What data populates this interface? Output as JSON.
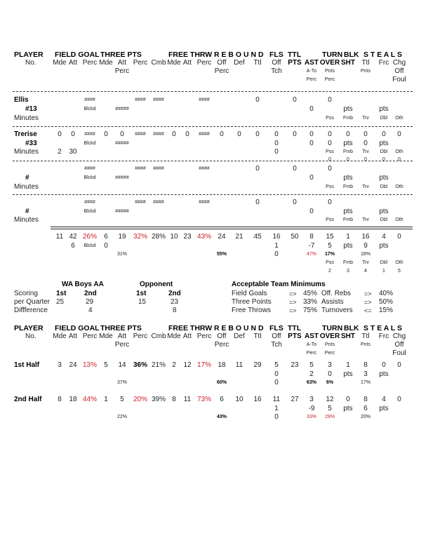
{
  "header": {
    "groups": [
      "PLAYER",
      "FIELD GOAL",
      "THREE PTS",
      "FREE THRW",
      "R E B O U N D",
      "FLS",
      "TTL",
      "TURN",
      "BLK",
      "S T E A L S"
    ],
    "rows": [
      [
        {
          "c": 0,
          "t": "No."
        },
        {
          "c": 1,
          "t": "Mde"
        },
        {
          "c": 2,
          "t": "Att"
        },
        {
          "c": 3,
          "t": "Perc"
        },
        {
          "c": 4,
          "t": "Mde"
        },
        {
          "c": 5,
          "t": "Att"
        },
        {
          "c": 6,
          "t": "Perc"
        },
        {
          "c": 7,
          "t": "Cmb"
        },
        {
          "c": 8,
          "t": "Mde"
        },
        {
          "c": 9,
          "t": "Att"
        },
        {
          "c": 10,
          "t": "Perc"
        },
        {
          "c": 11,
          "t": "Off"
        },
        {
          "c": 12,
          "t": "Def"
        },
        {
          "c": 13,
          "t": "Ttl"
        },
        {
          "c": 14,
          "t": "Off"
        },
        {
          "c": 15,
          "t": "PTS",
          "s": "b"
        },
        {
          "c": 16,
          "t": "AST",
          "s": "b"
        },
        {
          "c": 17,
          "t": "OVER",
          "s": "b"
        },
        {
          "c": 18,
          "t": "SHT",
          "s": "b"
        },
        {
          "c": 19,
          "t": "Ttl"
        },
        {
          "c": 20,
          "t": "Frc"
        },
        {
          "c": 21,
          "t": "Chg"
        }
      ],
      [
        {
          "c": 5,
          "t": "Perc"
        },
        {
          "c": 11,
          "t": "Perc"
        },
        {
          "c": 14,
          "t": "Tch"
        },
        {
          "c": 16,
          "t": "A-To",
          "s": "sm"
        },
        {
          "c": 17,
          "t": "Pnts",
          "s": "sm"
        },
        {
          "c": 19,
          "t": "Pnts",
          "s": "sm"
        },
        {
          "c": 21,
          "t": "Off"
        }
      ],
      [
        {
          "c": 16,
          "t": "Perc",
          "s": "sm"
        },
        {
          "c": 17,
          "t": "Perc",
          "s": "sm"
        },
        {
          "c": 21,
          "t": "Foul"
        }
      ]
    ]
  },
  "players": [
    {
      "name": "Ellis",
      "rows": [
        [
          {
            "c": 3,
            "t": "####",
            "s": "sm"
          },
          {
            "c": 6,
            "t": "####",
            "s": "sm"
          },
          {
            "c": 7,
            "t": "####",
            "s": "sm"
          },
          {
            "c": 10,
            "t": "####",
            "s": "sm"
          },
          {
            "c": 13,
            "t": "0"
          },
          {
            "c": 15,
            "t": "0"
          },
          {
            "c": 17,
            "t": "0"
          }
        ],
        [
          {
            "c": 0,
            "t": "#13",
            "s": "b"
          },
          {
            "c": 3,
            "t": "Blckd",
            "s": "sm"
          },
          {
            "c": 5,
            "t": "#####",
            "s": "sm"
          },
          {
            "c": 16,
            "t": "0"
          },
          {
            "c": 18,
            "t": "pts"
          },
          {
            "c": 20,
            "t": "pts"
          }
        ],
        [
          {
            "c": 0,
            "t": "Minutes"
          },
          {
            "c": 17,
            "t": "Pss",
            "s": "sm"
          },
          {
            "c": 18,
            "t": "Fmb",
            "s": "sm"
          },
          {
            "c": 19,
            "t": "Trv",
            "s": "sm"
          },
          {
            "c": 20,
            "t": "Dbl",
            "s": "sm"
          },
          {
            "c": 21,
            "t": "Oth",
            "s": "sm"
          }
        ]
      ]
    },
    {
      "name": "Trerise",
      "rows": [
        [
          {
            "c": 1,
            "t": "0"
          },
          {
            "c": 2,
            "t": "0"
          },
          {
            "c": 3,
            "t": "####",
            "s": "sm"
          },
          {
            "c": 4,
            "t": "0"
          },
          {
            "c": 5,
            "t": "0"
          },
          {
            "c": 6,
            "t": "####",
            "s": "sm"
          },
          {
            "c": 7,
            "t": "####",
            "s": "sm"
          },
          {
            "c": 8,
            "t": "0"
          },
          {
            "c": 9,
            "t": "0"
          },
          {
            "c": 10,
            "t": "####",
            "s": "sm"
          },
          {
            "c": 11,
            "t": "0"
          },
          {
            "c": 12,
            "t": "0"
          },
          {
            "c": 13,
            "t": "0"
          },
          {
            "c": 14,
            "t": "0"
          },
          {
            "c": 15,
            "t": "0"
          },
          {
            "c": 16,
            "t": "0"
          },
          {
            "c": 17,
            "t": "0"
          },
          {
            "c": 18,
            "t": "0"
          },
          {
            "c": 19,
            "t": "0"
          },
          {
            "c": 20,
            "t": "0"
          },
          {
            "c": 21,
            "t": "0"
          }
        ],
        [
          {
            "c": 0,
            "t": "#33",
            "s": "b"
          },
          {
            "c": 3,
            "t": "Blckd",
            "s": "sm"
          },
          {
            "c": 5,
            "t": "#####",
            "s": "sm"
          },
          {
            "c": 14,
            "t": "0"
          },
          {
            "c": 16,
            "t": "0"
          },
          {
            "c": 17,
            "t": "0"
          },
          {
            "c": 18,
            "t": "pts"
          },
          {
            "c": 19,
            "t": "0"
          },
          {
            "c": 20,
            "t": "pts"
          }
        ],
        [
          {
            "c": 0,
            "t": "Minutes"
          },
          {
            "c": 1,
            "t": "2"
          },
          {
            "c": 2,
            "t": "30"
          },
          {
            "c": 14,
            "t": "0"
          },
          {
            "c": 17,
            "t": "Pss",
            "s": "sm"
          },
          {
            "c": 18,
            "t": "Fmb",
            "s": "sm"
          },
          {
            "c": 19,
            "t": "Trv",
            "s": "sm"
          },
          {
            "c": 20,
            "t": "Dbl",
            "s": "sm"
          },
          {
            "c": 21,
            "t": "Oth",
            "s": "sm"
          }
        ],
        [
          {
            "c": 17,
            "t": "0",
            "s": "sm"
          },
          {
            "c": 18,
            "t": "0",
            "s": "sm"
          },
          {
            "c": 19,
            "t": "0",
            "s": "sm"
          },
          {
            "c": 20,
            "t": "0",
            "s": "sm"
          },
          {
            "c": 21,
            "t": "0",
            "s": "sm"
          }
        ]
      ]
    },
    {
      "name": "",
      "rows": [
        [
          {
            "c": 3,
            "t": "####",
            "s": "sm"
          },
          {
            "c": 6,
            "t": "####",
            "s": "sm"
          },
          {
            "c": 7,
            "t": "####",
            "s": "sm"
          },
          {
            "c": 10,
            "t": "####",
            "s": "sm"
          },
          {
            "c": 13,
            "t": "0"
          },
          {
            "c": 15,
            "t": "0"
          },
          {
            "c": 17,
            "t": "0"
          }
        ],
        [
          {
            "c": 0,
            "t": "#",
            "s": "b"
          },
          {
            "c": 3,
            "t": "Blckd",
            "s": "sm"
          },
          {
            "c": 5,
            "t": "#####",
            "s": "sm"
          },
          {
            "c": 16,
            "t": "0"
          },
          {
            "c": 18,
            "t": "pts"
          },
          {
            "c": 20,
            "t": "pts"
          }
        ],
        [
          {
            "c": 0,
            "t": "Minutes"
          },
          {
            "c": 17,
            "t": "Pss",
            "s": "sm"
          },
          {
            "c": 18,
            "t": "Fmb",
            "s": "sm"
          },
          {
            "c": 19,
            "t": "Trv",
            "s": "sm"
          },
          {
            "c": 20,
            "t": "Dbl",
            "s": "sm"
          },
          {
            "c": 21,
            "t": "Oth",
            "s": "sm"
          }
        ]
      ]
    },
    {
      "name": "",
      "rows": [
        [
          {
            "c": 3,
            "t": "####",
            "s": "sm"
          },
          {
            "c": 6,
            "t": "####",
            "s": "sm"
          },
          {
            "c": 7,
            "t": "####",
            "s": "sm"
          },
          {
            "c": 10,
            "t": "####",
            "s": "sm"
          },
          {
            "c": 13,
            "t": "0"
          },
          {
            "c": 15,
            "t": "0"
          },
          {
            "c": 17,
            "t": "0"
          }
        ],
        [
          {
            "c": 0,
            "t": "#",
            "s": "b"
          },
          {
            "c": 3,
            "t": "Blckd",
            "s": "sm"
          },
          {
            "c": 5,
            "t": "#####",
            "s": "sm"
          },
          {
            "c": 16,
            "t": "0"
          },
          {
            "c": 18,
            "t": "pts"
          },
          {
            "c": 20,
            "t": "pts"
          }
        ],
        [
          {
            "c": 0,
            "t": "Minutes"
          },
          {
            "c": 17,
            "t": "Pss",
            "s": "sm"
          },
          {
            "c": 18,
            "t": "Fmb",
            "s": "sm"
          },
          {
            "c": 19,
            "t": "Trv",
            "s": "sm"
          },
          {
            "c": 20,
            "t": "Dbl",
            "s": "sm"
          },
          {
            "c": 21,
            "t": "Oth",
            "s": "sm"
          }
        ]
      ]
    }
  ],
  "totals": [
    [
      {
        "c": 1,
        "t": "11"
      },
      {
        "c": 2,
        "t": "42"
      },
      {
        "c": 3,
        "t": "26%",
        "s": "red"
      },
      {
        "c": 4,
        "t": "6"
      },
      {
        "c": 5,
        "t": "19"
      },
      {
        "c": 6,
        "t": "32%",
        "s": "red"
      },
      {
        "c": 7,
        "t": "28%"
      },
      {
        "c": 8,
        "t": "10"
      },
      {
        "c": 9,
        "t": "23"
      },
      {
        "c": 10,
        "t": "43%",
        "s": "red"
      },
      {
        "c": 11,
        "t": "24"
      },
      {
        "c": 12,
        "t": "21"
      },
      {
        "c": 13,
        "t": "45"
      },
      {
        "c": 14,
        "t": "16"
      },
      {
        "c": 15,
        "t": "50"
      },
      {
        "c": 16,
        "t": "8"
      },
      {
        "c": 17,
        "t": "15"
      },
      {
        "c": 18,
        "t": "1"
      },
      {
        "c": 19,
        "t": "16"
      },
      {
        "c": 20,
        "t": "4"
      },
      {
        "c": 21,
        "t": "0"
      }
    ],
    [
      {
        "c": 2,
        "t": "6"
      },
      {
        "c": 3,
        "t": "Blckd",
        "s": "sm"
      },
      {
        "c": 4,
        "t": "0"
      },
      {
        "c": 14,
        "t": "1"
      },
      {
        "c": 16,
        "t": "-7"
      },
      {
        "c": 17,
        "t": "5"
      },
      {
        "c": 18,
        "t": "pts"
      },
      {
        "c": 19,
        "t": "9"
      },
      {
        "c": 20,
        "t": "pts"
      }
    ],
    [
      {
        "c": 5,
        "t": "31%",
        "s": "sm"
      },
      {
        "c": 11,
        "t": "55%",
        "s": "sm b"
      },
      {
        "c": 14,
        "t": "0"
      },
      {
        "c": 16,
        "t": "47%",
        "s": "sm red"
      },
      {
        "c": 17,
        "t": "17%",
        "s": "sm b"
      },
      {
        "c": 19,
        "t": "18%",
        "s": "sm"
      }
    ],
    [
      {
        "c": 17,
        "t": "Pss",
        "s": "sm"
      },
      {
        "c": 18,
        "t": "Fmb",
        "s": "sm"
      },
      {
        "c": 19,
        "t": "Trv",
        "s": "sm"
      },
      {
        "c": 20,
        "t": "Dbl",
        "s": "sm"
      },
      {
        "c": 21,
        "t": "Oth",
        "s": "sm"
      }
    ],
    [
      {
        "c": 17,
        "t": "2",
        "s": "sm"
      },
      {
        "c": 18,
        "t": "3",
        "s": "sm"
      },
      {
        "c": 19,
        "t": "4",
        "s": "sm"
      },
      {
        "c": 20,
        "t": "1",
        "s": "sm"
      },
      {
        "c": 21,
        "t": "5",
        "s": "sm"
      }
    ]
  ],
  "quarters": {
    "team": "WA Boys AA",
    "opponent": "Opponent",
    "labels": [
      "Scoring",
      "per Quarter",
      "Diffference"
    ],
    "col1": "1st",
    "col2": "2nd",
    "team_scores": [
      "25",
      "29"
    ],
    "team_diff": "4",
    "opp_scores": [
      "15",
      "23"
    ],
    "opp_diff": "8",
    "minimums_title": "Acceptable Team Minimums",
    "minimums": [
      {
        "name": "Field Goals",
        "op": "=>",
        "val": "45%",
        "name2": "Off. Rebs",
        "op2": "=>",
        "val2": "40%"
      },
      {
        "name": "Three Points",
        "op": "=>",
        "val": "33%",
        "name2": "Assists",
        "op2": "=>",
        "val2": "50%"
      },
      {
        "name": "Free Throws",
        "op": "=>",
        "val": "75%",
        "name2": "Turnovers",
        "op2": "<=",
        "val2": "15%"
      }
    ]
  },
  "halves": [
    {
      "name": "1st Half",
      "rows": [
        [
          {
            "c": 1,
            "t": "3"
          },
          {
            "c": 2,
            "t": "24"
          },
          {
            "c": 3,
            "t": "13%",
            "s": "red"
          },
          {
            "c": 4,
            "t": "5"
          },
          {
            "c": 5,
            "t": "14"
          },
          {
            "c": 6,
            "t": "36%",
            "s": "b"
          },
          {
            "c": 7,
            "t": "21%"
          },
          {
            "c": 8,
            "t": "2"
          },
          {
            "c": 9,
            "t": "12"
          },
          {
            "c": 10,
            "t": "17%",
            "s": "red"
          },
          {
            "c": 11,
            "t": "18"
          },
          {
            "c": 12,
            "t": "11"
          },
          {
            "c": 13,
            "t": "29"
          },
          {
            "c": 14,
            "t": "5"
          },
          {
            "c": 15,
            "t": "23"
          },
          {
            "c": 16,
            "t": "5"
          },
          {
            "c": 17,
            "t": "3"
          },
          {
            "c": 18,
            "t": "1"
          },
          {
            "c": 19,
            "t": "8"
          },
          {
            "c": 20,
            "t": "0"
          },
          {
            "c": 21,
            "t": "0"
          }
        ],
        [
          {
            "c": 14,
            "t": "0"
          },
          {
            "c": 16,
            "t": "2"
          },
          {
            "c": 17,
            "t": "0"
          },
          {
            "c": 18,
            "t": "pts"
          },
          {
            "c": 19,
            "t": "3"
          },
          {
            "c": 20,
            "t": "pts"
          }
        ],
        [
          {
            "c": 5,
            "t": "37%",
            "s": "sm"
          },
          {
            "c": 11,
            "t": "60%",
            "s": "sm b"
          },
          {
            "c": 14,
            "t": "0"
          },
          {
            "c": 16,
            "t": "63%",
            "s": "sm b"
          },
          {
            "c": 17,
            "t": "6%",
            "s": "sm b"
          },
          {
            "c": 19,
            "t": "17%",
            "s": "sm"
          }
        ]
      ]
    },
    {
      "name": "2nd Half",
      "rows": [
        [
          {
            "c": 1,
            "t": "8"
          },
          {
            "c": 2,
            "t": "18"
          },
          {
            "c": 3,
            "t": "44%",
            "s": "red"
          },
          {
            "c": 4,
            "t": "1"
          },
          {
            "c": 5,
            "t": "5"
          },
          {
            "c": 6,
            "t": "20%",
            "s": "red"
          },
          {
            "c": 7,
            "t": "39%"
          },
          {
            "c": 8,
            "t": "8"
          },
          {
            "c": 9,
            "t": "11"
          },
          {
            "c": 10,
            "t": "73%",
            "s": "red"
          },
          {
            "c": 11,
            "t": "6"
          },
          {
            "c": 12,
            "t": "10"
          },
          {
            "c": 13,
            "t": "16"
          },
          {
            "c": 14,
            "t": "11"
          },
          {
            "c": 15,
            "t": "27"
          },
          {
            "c": 16,
            "t": "3"
          },
          {
            "c": 17,
            "t": "12"
          },
          {
            "c": 18,
            "t": "0"
          },
          {
            "c": 19,
            "t": "8"
          },
          {
            "c": 20,
            "t": "4"
          },
          {
            "c": 21,
            "t": "0"
          }
        ],
        [
          {
            "c": 14,
            "t": "1"
          },
          {
            "c": 16,
            "t": "-9"
          },
          {
            "c": 17,
            "t": "5"
          },
          {
            "c": 18,
            "t": "pts"
          },
          {
            "c": 19,
            "t": "6"
          },
          {
            "c": 20,
            "t": "pts"
          }
        ],
        [
          {
            "c": 5,
            "t": "22%",
            "s": "sm"
          },
          {
            "c": 11,
            "t": "43%",
            "s": "sm b"
          },
          {
            "c": 14,
            "t": "0"
          },
          {
            "c": 16,
            "t": "33%",
            "s": "sm red"
          },
          {
            "c": 17,
            "t": "29%",
            "s": "sm red"
          },
          {
            "c": 19,
            "t": "20%",
            "s": "sm"
          }
        ]
      ]
    }
  ],
  "colors": {
    "text": "#222222",
    "alert_red": "#d0202a"
  }
}
